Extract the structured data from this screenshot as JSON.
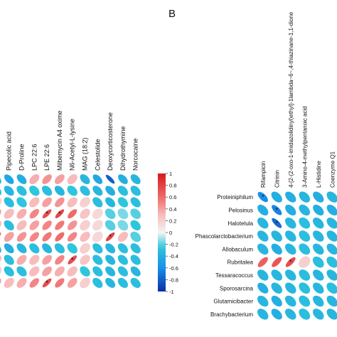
{
  "panel_b_label": "B",
  "colors": {
    "neg_strong": "#0a2fa8",
    "neg_mid": "#1a8fe8",
    "neg_light": "#2ec6dc",
    "neutral": "#f4f4f4",
    "pos_light": "#f7bcbc",
    "pos_mid": "#f06a6a",
    "pos_strong": "#d7191c"
  },
  "colorbar": {
    "ticks": [
      "1",
      "0.8",
      "0.6",
      "0.4",
      "0.2",
      "0",
      "-0.2",
      "-0.4",
      "-0.6",
      "-0.8",
      "-1"
    ]
  },
  "chart_data": [
    {
      "type": "heatmap",
      "panel": "A",
      "columns": [
        "",
        "Pipecolic acid",
        "D-Proline",
        "LPC 22:6",
        "LPE 22:6",
        "Milbemycin A4 oxime",
        "N6-Acetyl-L-lysine",
        "MAG (18:2)",
        "Celestolide",
        "Deoxycorticosterone",
        "Dihydrothymine",
        "Norcocaine"
      ],
      "rows": [
        "",
        "",
        "",
        "",
        "",
        "",
        "",
        "",
        "",
        ""
      ],
      "values": [
        [
          -0.4,
          -0.45,
          -0.4,
          0.35,
          0.45,
          0.4,
          0.3,
          -0.35,
          -0.45,
          -0.8,
          -0.4,
          -0.35
        ],
        [
          -0.3,
          -0.35,
          -0.3,
          -0.25,
          -0.3,
          -0.35,
          -0.25,
          -0.3,
          -0.35,
          -0.4,
          -0.3,
          -0.3
        ],
        [
          0.2,
          -0.3,
          -0.25,
          0.3,
          0.4,
          0.45,
          0.3,
          0.2,
          -0.3,
          -0.35,
          -0.25,
          -0.3
        ],
        [
          0.4,
          0.3,
          0.35,
          0.5,
          0.75,
          0.78,
          0.6,
          0.25,
          0.15,
          -0.2,
          -0.15,
          -0.2
        ],
        [
          0.3,
          -0.3,
          0.3,
          0.4,
          0.5,
          0.55,
          0.45,
          0.2,
          0.15,
          -0.2,
          -0.15,
          -0.25
        ],
        [
          0.7,
          0.4,
          0.45,
          0.5,
          0.55,
          0.6,
          0.5,
          0.3,
          0.15,
          0.8,
          0.3,
          -0.2
        ],
        [
          -0.35,
          -0.4,
          -0.35,
          -0.3,
          -0.35,
          -0.3,
          -0.25,
          0.2,
          -0.3,
          -0.35,
          -0.3,
          -0.3
        ],
        [
          0.3,
          -0.3,
          0.35,
          0.3,
          0.4,
          0.5,
          0.75,
          0.25,
          -0.3,
          -0.35,
          -0.3,
          -0.3
        ],
        [
          0.2,
          -0.3,
          -0.3,
          0.3,
          0.4,
          0.35,
          0.3,
          -0.25,
          -0.3,
          -0.35,
          -0.3,
          -0.35
        ],
        [
          0.4,
          0.3,
          0.35,
          0.5,
          0.75,
          0.55,
          0.4,
          0.2,
          -0.3,
          -0.35,
          -0.3,
          -0.3
        ]
      ],
      "significant": [
        [
          3,
          4
        ],
        [
          3,
          5
        ],
        [
          5,
          9
        ],
        [
          7,
          6
        ],
        [
          9,
          4
        ]
      ],
      "color_range": [
        -1,
        1
      ]
    },
    {
      "type": "heatmap",
      "panel": "B",
      "columns": [
        "Rifampicin",
        "Citrinin",
        "4-[2-(2-oxo-1-imidazolidinyl)ethyl]-1lambda~6~,4-thiazinane-1,1-dione",
        "3-Amino-4-methylpentanoic acid",
        "L-Histidine",
        "Coenzyme Q1",
        ""
      ],
      "rows": [
        "Proteiniphilum",
        "Pelosinus",
        "Halotelula",
        "Phascolarctobacterium",
        "Allobaculum",
        "Rubritalea",
        "Tessaracoccus",
        "Sporosarcina",
        "Glutamicibacter",
        "Brachybacterium"
      ],
      "values": [
        [
          -0.6,
          -0.4,
          -0.4,
          -0.35,
          -0.4,
          -0.35,
          -0.35
        ],
        [
          -0.4,
          -0.65,
          -0.4,
          -0.35,
          -0.4,
          -0.4,
          -0.35
        ],
        [
          -0.35,
          -0.75,
          -0.35,
          -0.3,
          -0.35,
          -0.35,
          -0.3
        ],
        [
          -0.35,
          -0.35,
          -0.35,
          -0.3,
          -0.35,
          -0.35,
          -0.3
        ],
        [
          -0.35,
          -0.4,
          -0.35,
          -0.3,
          -0.35,
          -0.35,
          -0.3
        ],
        [
          0.65,
          0.7,
          0.75,
          0.2,
          -0.3,
          -0.3,
          -0.3
        ],
        [
          -0.35,
          -0.35,
          -0.35,
          -0.3,
          -0.35,
          -0.35,
          -0.3
        ],
        [
          -0.4,
          -0.35,
          -0.35,
          -0.3,
          -0.35,
          -0.3,
          -0.3
        ],
        [
          -0.35,
          -0.4,
          -0.35,
          -0.3,
          -0.35,
          -0.35,
          -0.3
        ],
        [
          -0.35,
          -0.4,
          -0.35,
          -0.3,
          -0.35,
          -0.35,
          -0.3
        ]
      ],
      "significant": [
        [
          0,
          0
        ],
        [
          1,
          1
        ],
        [
          2,
          1
        ],
        [
          5,
          2
        ]
      ],
      "color_range": [
        -1,
        1
      ]
    }
  ]
}
